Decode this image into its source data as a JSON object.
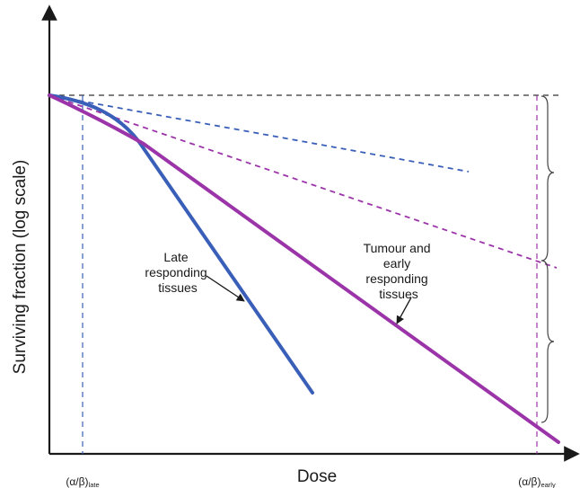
{
  "chart_data": {
    "type": "line",
    "title": "",
    "xlabel": "Dose",
    "ylabel": "Surviving fraction (log scale)",
    "log_scale_y": true,
    "grid": false,
    "x_ticks": [
      {
        "name": "alpha_beta_late",
        "main": "(α/β)",
        "sub": "late"
      },
      {
        "name": "alpha_beta_early",
        "main": "(α/β)",
        "sub": "early"
      }
    ],
    "series": [
      {
        "id": "late",
        "color": "#3a5fb8",
        "style": "solid"
      },
      {
        "id": "early",
        "color": "#9b34a8",
        "style": "solid"
      },
      {
        "id": "late-alpha",
        "color": "#3a5fb8",
        "style": "dashed"
      },
      {
        "id": "early-alpha",
        "color": "#9b34a8",
        "style": "dashed"
      }
    ],
    "annotations": [
      {
        "id": "late",
        "lines": [
          "Late",
          "responding",
          "tissues"
        ]
      },
      {
        "id": "early",
        "lines": [
          "Tumour and",
          "early",
          "responding",
          "tissues"
        ]
      }
    ]
  }
}
